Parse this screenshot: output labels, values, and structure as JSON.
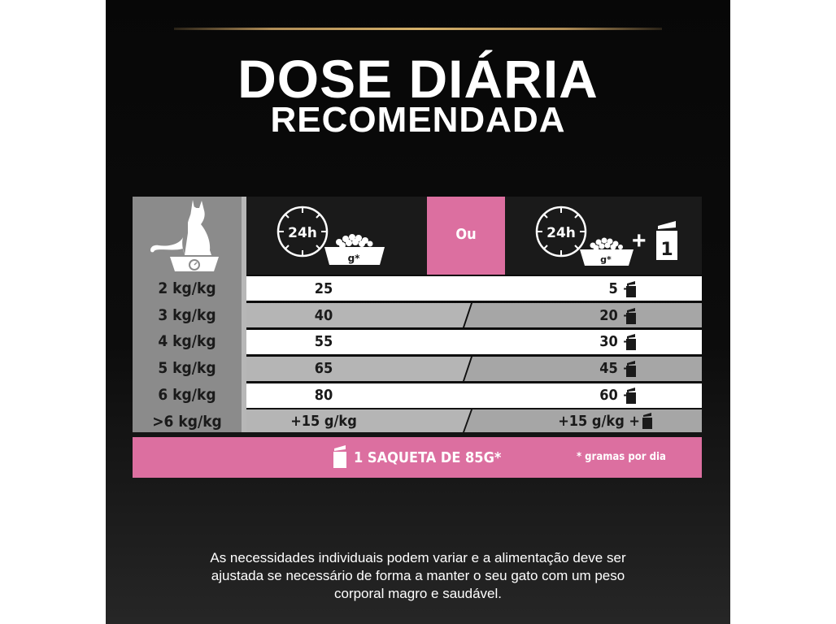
{
  "header": {
    "title_line1": "DOSE DIÁRIA",
    "title_line2": "RECOMENDADA"
  },
  "table": {
    "col1_icon_label": "24h",
    "col1_bowl_label": "g*",
    "or_label": "Ou",
    "col2_icon_label": "24h",
    "col2_bowl_label": "g*",
    "col2_pouch_count": "1",
    "rows": [
      {
        "weight": "2 kg/kg",
        "dry_only": "25",
        "mixed": "5 +"
      },
      {
        "weight": "3 kg/kg",
        "dry_only": "40",
        "mixed": "20 +"
      },
      {
        "weight": "4 kg/kg",
        "dry_only": "55",
        "mixed": "30 +"
      },
      {
        "weight": "5 kg/kg",
        "dry_only": "65",
        "mixed": "45 +"
      },
      {
        "weight": "6 kg/kg",
        "dry_only": "80",
        "mixed": "60 +"
      },
      {
        "weight": ">6  kg/kg",
        "dry_only": "+15 g/kg",
        "mixed": "+15 g/kg +"
      }
    ],
    "footer_pouch_label": "1 SAQUETA DE 85G*",
    "footer_note": "* gramas por dia"
  },
  "colors": {
    "pink": "#dc6fa0",
    "gold": "#b08d57"
  },
  "disclaimer": {
    "line1": "As necessidades individuais podem variar e a alimentação deve ser",
    "line2": "ajustada se necessário de forma a manter o seu gato com um peso",
    "line3": "corporal magro e saudável."
  }
}
